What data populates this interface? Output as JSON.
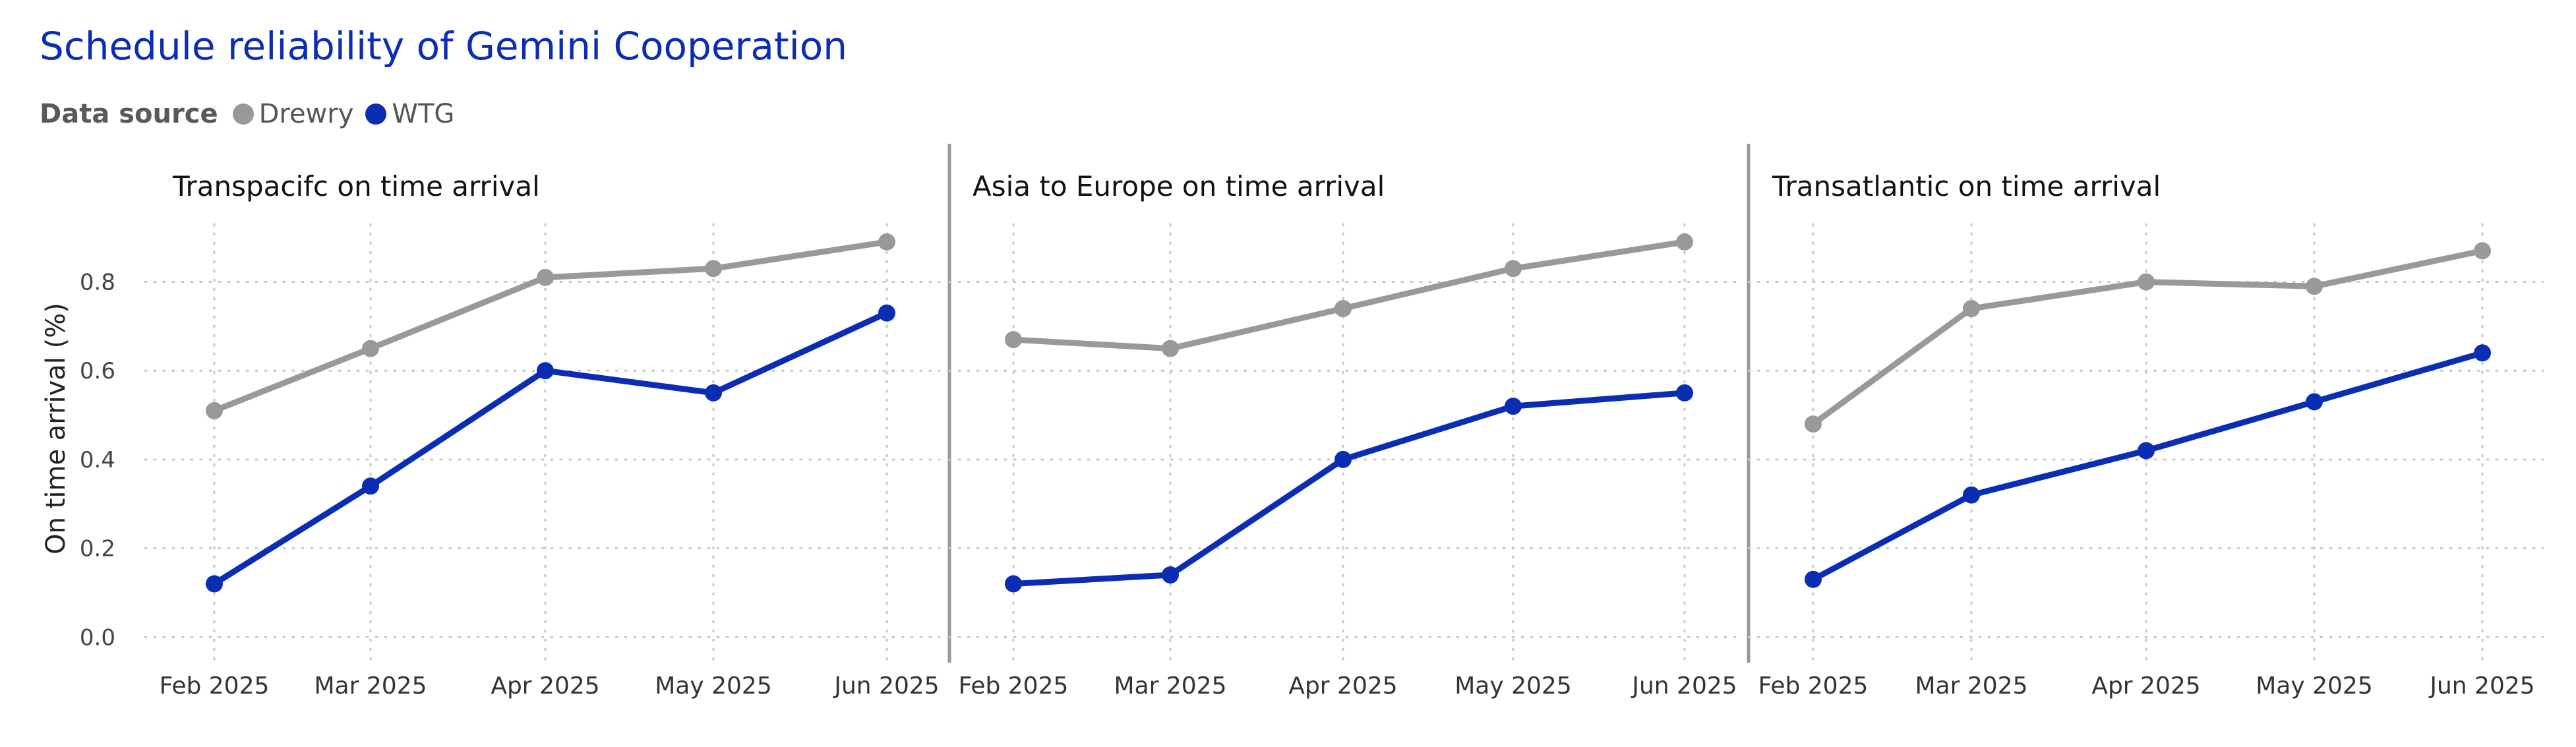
{
  "title": "Schedule reliability of Gemini Cooperation",
  "legend": {
    "title": "Data source",
    "items": [
      {
        "name": "Drewry",
        "color": "#999999"
      },
      {
        "name": "WTG",
        "color": "#0A2DB4"
      }
    ]
  },
  "chart_data": {
    "type": "line",
    "ylabel": "On time arrival (%)",
    "ylim": [
      -0.05,
      0.93
    ],
    "yticks": [
      "0.0",
      "0.2",
      "0.4",
      "0.6",
      "0.8"
    ],
    "grid": true,
    "legend_position": "top-left",
    "categories": [
      "Feb 2025",
      "Mar 2025",
      "Apr 2025",
      "May 2025",
      "Jun 2025"
    ],
    "panels": [
      {
        "title": "Transpacifc on time arrival",
        "series": [
          {
            "name": "Drewry",
            "values": [
              0.51,
              0.65,
              0.81,
              0.83,
              0.89
            ]
          },
          {
            "name": "WTG",
            "values": [
              0.12,
              0.34,
              0.6,
              0.55,
              0.73
            ]
          }
        ]
      },
      {
        "title": "Asia to Europe on time arrival",
        "series": [
          {
            "name": "Drewry",
            "values": [
              0.67,
              0.65,
              0.74,
              0.83,
              0.89
            ]
          },
          {
            "name": "WTG",
            "values": [
              0.12,
              0.14,
              0.4,
              0.52,
              0.55
            ]
          }
        ]
      },
      {
        "title": "Transatlantic on time arrival",
        "series": [
          {
            "name": "Drewry",
            "values": [
              0.48,
              0.74,
              0.8,
              0.79,
              0.87
            ]
          },
          {
            "name": "WTG",
            "values": [
              0.13,
              0.32,
              0.42,
              0.53,
              0.64
            ]
          }
        ]
      }
    ]
  }
}
